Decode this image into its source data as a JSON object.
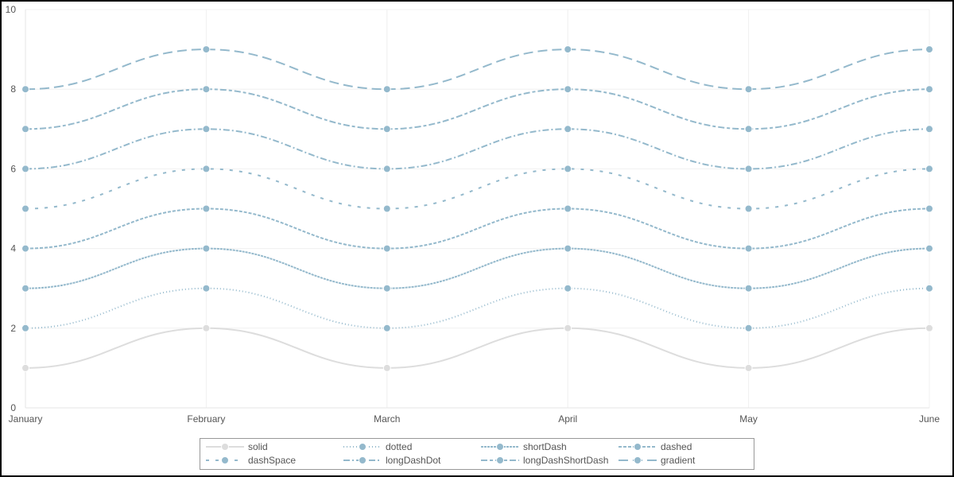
{
  "chart_data": {
    "type": "line",
    "title": "",
    "xlabel": "",
    "ylabel": "",
    "categories": [
      "January",
      "February",
      "March",
      "April",
      "May",
      "June"
    ],
    "ylim": [
      0,
      10
    ],
    "yticks": [
      0,
      2,
      4,
      6,
      8,
      10
    ],
    "grid": true,
    "curve": "smooth",
    "legend_placement": "bottom-center",
    "series": [
      {
        "name": "solid",
        "values": [
          1,
          2,
          1,
          2,
          1,
          2
        ],
        "color": "#dddddd",
        "dash": "solid"
      },
      {
        "name": "dotted",
        "values": [
          2,
          3,
          2,
          3,
          2,
          3
        ],
        "color": "#94b9cc",
        "dash": "dotted"
      },
      {
        "name": "shortDash",
        "values": [
          3,
          4,
          3,
          4,
          3,
          4
        ],
        "color": "#94b9cc",
        "dash": "shortDash"
      },
      {
        "name": "dashed",
        "values": [
          4,
          5,
          4,
          5,
          4,
          5
        ],
        "color": "#94b9cc",
        "dash": "dashed"
      },
      {
        "name": "dashSpace",
        "values": [
          5,
          6,
          5,
          6,
          5,
          6
        ],
        "color": "#94b9cc",
        "dash": "dashSpace"
      },
      {
        "name": "longDashDot",
        "values": [
          6,
          7,
          6,
          7,
          6,
          7
        ],
        "color": "#94b9cc",
        "dash": "longDashDot"
      },
      {
        "name": "longDashShortDash",
        "values": [
          7,
          8,
          7,
          8,
          7,
          8
        ],
        "color": "#94b9cc",
        "dash": "longDashShortDash"
      },
      {
        "name": "gradient",
        "values": [
          8,
          9,
          8,
          9,
          8,
          9
        ],
        "color": "#94b9cc",
        "dash": "gradient"
      }
    ]
  }
}
